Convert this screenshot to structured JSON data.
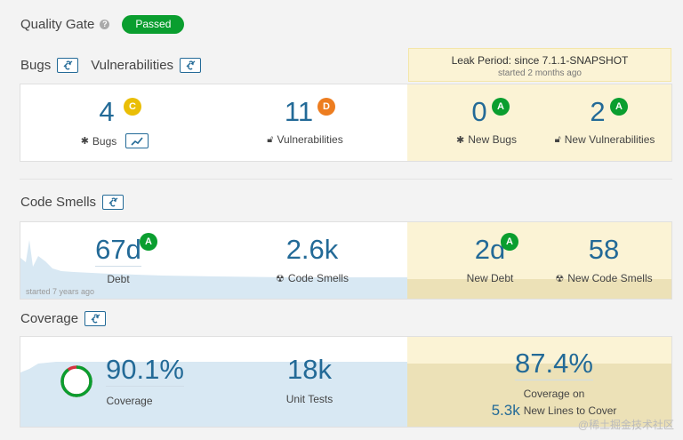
{
  "quality_gate": {
    "title": "Quality Gate",
    "status": "Passed"
  },
  "sections": {
    "bugs": "Bugs",
    "vulnerabilities": "Vulnerabilities",
    "code_smells": "Code Smells",
    "coverage": "Coverage"
  },
  "leak": {
    "title": "Leak Period: since 7.1.1-SNAPSHOT",
    "subtitle": "started 2 months ago"
  },
  "bugs_panel": {
    "bugs_value": "4",
    "bugs_rating": "C",
    "bugs_label": "Bugs",
    "vuln_value": "11",
    "vuln_rating": "D",
    "vuln_label": "Vulnerabilities",
    "new_bugs_value": "0",
    "new_bugs_rating": "A",
    "new_bugs_label": "New Bugs",
    "new_vuln_value": "2",
    "new_vuln_rating": "A",
    "new_vuln_label": "New Vulnerabilities"
  },
  "smells_panel": {
    "debt_value": "67d",
    "debt_rating": "A",
    "debt_label": "Debt",
    "smells_value": "2.6k",
    "smells_label": "Code Smells",
    "new_debt_value": "2d",
    "new_debt_rating": "A",
    "new_debt_label": "New Debt",
    "new_smells_value": "58",
    "new_smells_label": "New Code Smells",
    "started": "started 7 years ago"
  },
  "coverage_panel": {
    "coverage_value": "90.1%",
    "coverage_label": "Coverage",
    "coverage_fraction": 0.901,
    "tests_value": "18k",
    "tests_label": "Unit Tests",
    "new_cov_value": "87.4%",
    "new_cov_label": "Coverage on",
    "new_lines_value": "5.3k",
    "new_lines_label": "New Lines to Cover"
  },
  "watermark": "@稀土掘金技术社区",
  "colors": {
    "passed": "#0a9e2f",
    "link": "#236a97",
    "leak": "#fbf3d5",
    "rating_a": "#0a9e2f",
    "rating_c": "#eabe06",
    "rating_d": "#ed7d20",
    "coverage_ring": "#0a9e2f",
    "uncovered": "#d4333f"
  },
  "icons": {
    "help": "help-icon",
    "link": "link-icon",
    "bug": "bug-icon",
    "lock": "lock-icon",
    "smell": "code-smell-icon",
    "chart": "chart-icon"
  }
}
